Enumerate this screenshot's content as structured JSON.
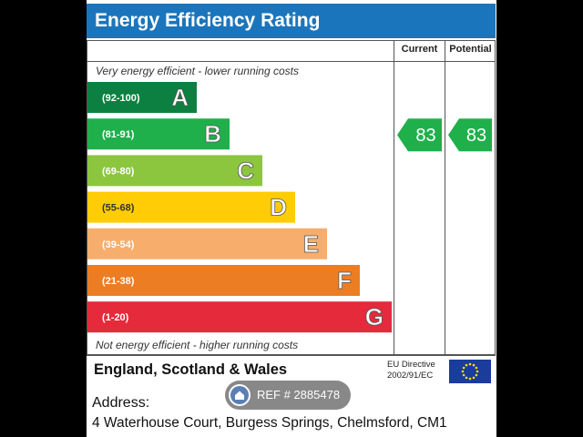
{
  "title": "Energy Efficiency Rating",
  "header": {
    "current": "Current",
    "potential": "Potential"
  },
  "note_top": "Very energy efficient - lower running costs",
  "note_bottom": "Not energy efficient - higher running costs",
  "footer": {
    "country": "England, Scotland & Wales",
    "eu_line1": "EU Directive",
    "eu_line2": "2002/91/EC"
  },
  "address": {
    "label": "Address:",
    "line": "4 Waterhouse Court, Burgess Springs, Chelmsford, CM1"
  },
  "watermark": {
    "text": "REF # 2885478"
  },
  "chart_data": {
    "type": "bar",
    "categories": [
      "A",
      "B",
      "C",
      "D",
      "E",
      "F",
      "G"
    ],
    "ranges": [
      "(92-100)",
      "(81-91)",
      "(69-80)",
      "(55-68)",
      "(39-54)",
      "(21-38)",
      "(1-20)"
    ],
    "colors": [
      "#0c8040",
      "#1fb04b",
      "#8cc63f",
      "#ffcc05",
      "#f7ad6b",
      "#ed7d23",
      "#e52a3c"
    ],
    "current": 83,
    "potential": 83,
    "arrow_color": "#1fb04b"
  }
}
